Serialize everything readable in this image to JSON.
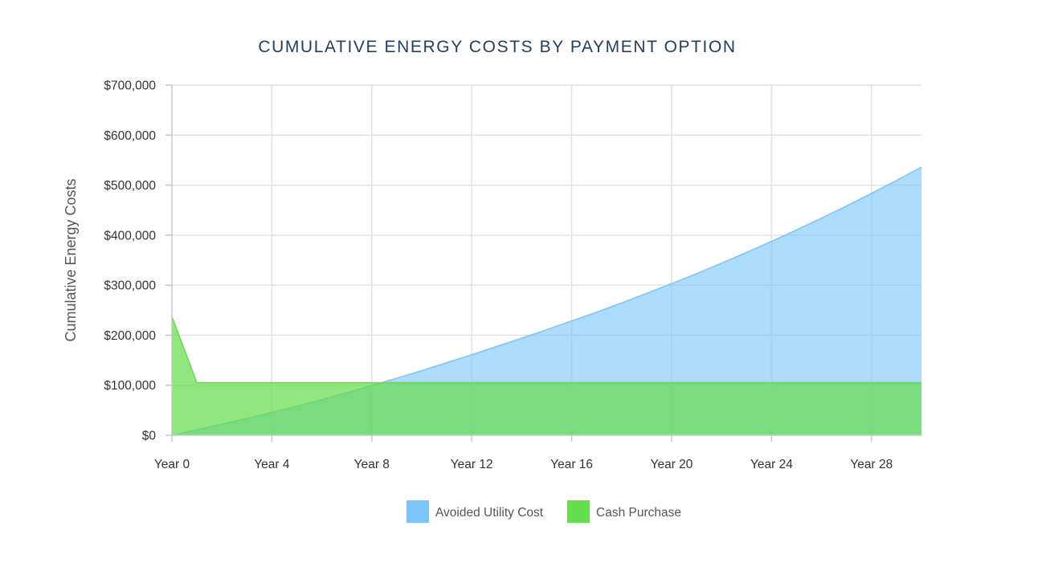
{
  "chart_data": {
    "type": "area",
    "title": "CUMULATIVE ENERGY COSTS BY PAYMENT OPTION",
    "xlabel": "",
    "ylabel": "Cumulative Energy Costs",
    "x": [
      0,
      1,
      2,
      3,
      4,
      5,
      6,
      7,
      8,
      9,
      10,
      11,
      12,
      13,
      14,
      15,
      16,
      17,
      18,
      19,
      20,
      21,
      22,
      23,
      24,
      25,
      26,
      27,
      28,
      29,
      30
    ],
    "x_ticks": [
      {
        "value": 0,
        "label": "Year 0"
      },
      {
        "value": 4,
        "label": "Year 4"
      },
      {
        "value": 8,
        "label": "Year 8"
      },
      {
        "value": 12,
        "label": "Year 12"
      },
      {
        "value": 16,
        "label": "Year 16"
      },
      {
        "value": 20,
        "label": "Year 20"
      },
      {
        "value": 24,
        "label": "Year 24"
      },
      {
        "value": 28,
        "label": "Year 28"
      }
    ],
    "xlim": [
      0,
      30
    ],
    "y_ticks": [
      {
        "value": 0,
        "label": "$0"
      },
      {
        "value": 100000,
        "label": "$100,000"
      },
      {
        "value": 200000,
        "label": "$200,000"
      },
      {
        "value": 300000,
        "label": "$300,000"
      },
      {
        "value": 400000,
        "label": "$400,000"
      },
      {
        "value": 500000,
        "label": "$500,000"
      },
      {
        "value": 600000,
        "label": "$600,000"
      },
      {
        "value": 700000,
        "label": "$700,000"
      }
    ],
    "ylim": [
      0,
      700000
    ],
    "grid": true,
    "legend_position": "bottom-center",
    "series": [
      {
        "name": "Avoided Utility Cost",
        "color": "#7cc6fb",
        "values": [
          0,
          11000,
          22000,
          33500,
          45500,
          58000,
          71000,
          85000,
          99500,
          114000,
          129000,
          145000,
          161000,
          177500,
          194000,
          211000,
          228500,
          246000,
          264500,
          283500,
          303000,
          323000,
          344000,
          365500,
          387500,
          410500,
          434000,
          458500,
          483500,
          509500,
          536000
        ]
      },
      {
        "name": "Cash Purchase",
        "color": "#66dd4c",
        "values": [
          237000,
          105000,
          105000,
          105000,
          105000,
          105000,
          105000,
          105000,
          105000,
          105000,
          105000,
          105000,
          105000,
          105000,
          105000,
          105000,
          105000,
          105000,
          105000,
          105000,
          105000,
          105000,
          105000,
          105000,
          105000,
          105000,
          105000,
          105000,
          105000,
          105000,
          105000
        ]
      }
    ]
  }
}
